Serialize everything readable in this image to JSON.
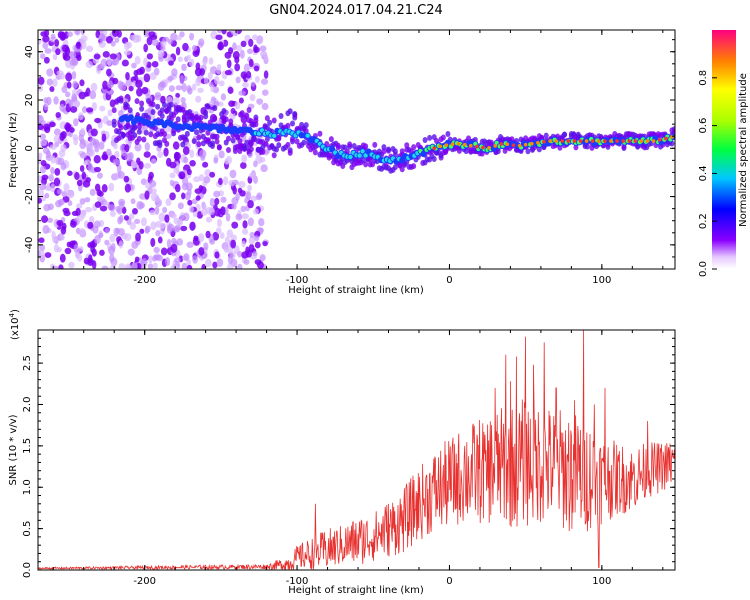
{
  "chart_data": [
    {
      "type": "heatmap",
      "title": "GN04.2024.017.04.21.C24",
      "xlabel": "Height of straight line (km)",
      "ylabel": "Frequency (Hz)",
      "xlim": [
        -270,
        148
      ],
      "ylim": [
        -50,
        49
      ],
      "xticks": [
        -200,
        -100,
        0,
        100
      ],
      "yticks": [
        -40,
        -20,
        0,
        20,
        40
      ],
      "ridge": {
        "x": [
          -210,
          -190,
          -170,
          -150,
          -130,
          -115,
          -105,
          -95,
          -85,
          -75,
          -65,
          -55,
          -45,
          -35,
          -25,
          -15,
          -5,
          5,
          15,
          25,
          35,
          45,
          55,
          65,
          75,
          85,
          95,
          105,
          115,
          125,
          135,
          148
        ],
        "freq": [
          12,
          10,
          9,
          8,
          7,
          6,
          7,
          5,
          2,
          -2,
          -3,
          -2,
          -4,
          -5,
          -3,
          -1,
          1,
          2,
          1,
          0,
          2,
          1,
          2,
          3,
          3,
          3,
          3,
          3,
          3,
          3,
          3,
          5
        ]
      },
      "colorbar": {
        "label": "Normalized spectral amplitude",
        "range": [
          0.0,
          1.0
        ],
        "ticks": [
          "0.0",
          "0.2",
          "0.4",
          "0.6",
          "0.8"
        ],
        "colormap": "rainbow"
      }
    },
    {
      "type": "line",
      "xlabel": "Height of straight line (km)",
      "ylabel": "SNR (10 * v/v)",
      "scale_label": "(x10",
      "scale_exp": "4",
      "xlim": [
        -270,
        148
      ],
      "ylim": [
        0,
        2.9
      ],
      "xticks": [
        -200,
        -100,
        0,
        100
      ],
      "yticks": [
        "0.0",
        "0.5",
        "1.0",
        "1.5",
        "2.0",
        "2.5"
      ],
      "color": "#e8312f",
      "envelope": {
        "x": [
          -270,
          -200,
          -120,
          -105,
          -100,
          -90,
          -80,
          -70,
          -60,
          -50,
          -40,
          -30,
          -20,
          -10,
          0,
          10,
          20,
          30,
          40,
          50,
          60,
          70,
          80,
          90,
          100,
          110,
          120,
          130,
          140,
          148
        ],
        "base": [
          0.02,
          0.03,
          0.04,
          0.08,
          0.15,
          0.2,
          0.25,
          0.3,
          0.35,
          0.4,
          0.5,
          0.6,
          0.8,
          0.95,
          1.05,
          1.15,
          1.2,
          1.25,
          1.25,
          1.3,
          1.3,
          1.25,
          1.2,
          1.15,
          1.1,
          1.1,
          1.1,
          1.2,
          1.25,
          1.3
        ],
        "amp": [
          0.01,
          0.02,
          0.03,
          0.1,
          0.15,
          0.2,
          0.25,
          0.25,
          0.3,
          0.3,
          0.35,
          0.4,
          0.45,
          0.5,
          0.55,
          0.6,
          0.65,
          0.7,
          0.75,
          0.8,
          0.75,
          0.7,
          0.8,
          0.7,
          0.55,
          0.45,
          0.4,
          0.35,
          0.3,
          0.3
        ]
      },
      "peaks": [
        [
          -88,
          0.8
        ],
        [
          -37,
          0.5
        ],
        [
          -11,
          1.05
        ],
        [
          10,
          1.5
        ],
        [
          24,
          1.45
        ],
        [
          30,
          2.2
        ],
        [
          37,
          2.6
        ],
        [
          40,
          2.28
        ],
        [
          44,
          2.58
        ],
        [
          50,
          2.82
        ],
        [
          55,
          2.48
        ],
        [
          62,
          2.75
        ],
        [
          70,
          2.2
        ],
        [
          82,
          2.05
        ],
        [
          88,
          2.9
        ],
        [
          95,
          2.0
        ],
        [
          102,
          2.2
        ],
        [
          130,
          1.8
        ]
      ]
    }
  ]
}
